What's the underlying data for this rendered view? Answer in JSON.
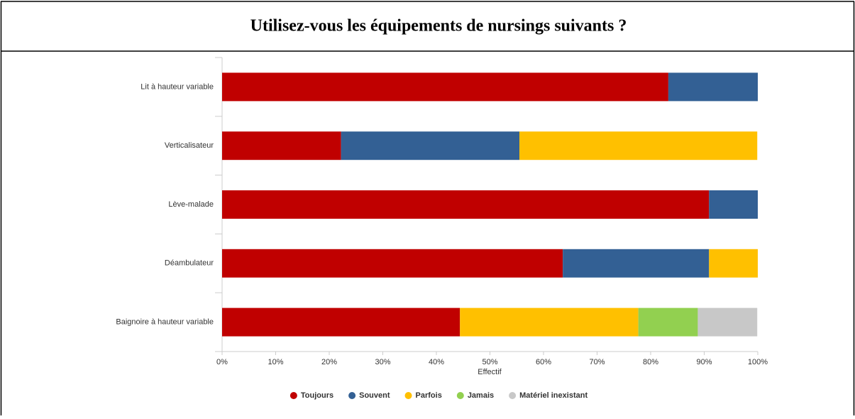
{
  "chart_data": {
    "type": "stacked-barh",
    "title": "Utilisez-vous les équipements de nursings suivants ?",
    "xlabel": "Effectif",
    "categories": [
      "Lit à hauteur variable",
      "Verticalisateur",
      "Lève-malade",
      "Déambulateur",
      "Baignoire à hauteur variable"
    ],
    "series": [
      {
        "name": "Toujours",
        "color": "#c00000",
        "values": [
          83.3,
          22.2,
          90.9,
          63.6,
          44.4
        ]
      },
      {
        "name": "Souvent",
        "color": "#336094",
        "values": [
          16.7,
          33.3,
          9.1,
          27.3,
          0
        ]
      },
      {
        "name": "Parfois",
        "color": "#ffc000",
        "values": [
          0,
          44.4,
          0,
          9.1,
          33.3
        ]
      },
      {
        "name": "Jamais",
        "color": "#92d050",
        "values": [
          0,
          0,
          0,
          0,
          11.1
        ]
      },
      {
        "name": "Matériel inexistant",
        "color": "#c8c8c8",
        "values": [
          0,
          0,
          0,
          0,
          11.1
        ]
      }
    ],
    "xlim": [
      0,
      100
    ],
    "xticks": [
      {
        "value": 0,
        "label": "0%"
      },
      {
        "value": 10,
        "label": "10%"
      },
      {
        "value": 20,
        "label": "20%"
      },
      {
        "value": 30,
        "label": "30%"
      },
      {
        "value": 40,
        "label": "40%"
      },
      {
        "value": 50,
        "label": "50%"
      },
      {
        "value": 60,
        "label": "60%"
      },
      {
        "value": 70,
        "label": "70%"
      },
      {
        "value": 80,
        "label": "80%"
      },
      {
        "value": 90,
        "label": "90%"
      },
      {
        "value": 100,
        "label": "100%"
      }
    ],
    "legend": "bottom"
  }
}
